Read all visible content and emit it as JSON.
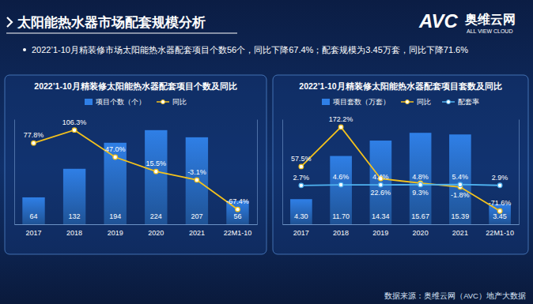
{
  "header": {
    "title": "太阳能热水器市场配套规模分析",
    "bullet": "2022’1-10月精装修市场太阳能热水器配套项目个数56个，同比下降67.4%；配套规模为3.45万套，同比下降71.6%",
    "logo": {
      "mark": "AVC",
      "name": "奥维云网",
      "tagline": "ALL VIEW CLOUD"
    }
  },
  "footer": {
    "source": "数据来源：奥维云网（AVC）地产大数据"
  },
  "chart_data": [
    {
      "type": "bar",
      "title": "2022’1-10月精装修太阳能热水器配套项目个数及同比",
      "categories": [
        "2017",
        "2018",
        "2019",
        "2020",
        "2021",
        "22M1-10"
      ],
      "series": [
        {
          "name": "项目个数（个）",
          "type": "bar",
          "color": "#2f7fe6",
          "values": [
            64,
            132,
            194,
            224,
            207,
            56
          ]
        },
        {
          "name": "同比",
          "type": "line",
          "axis": "y2",
          "color": "#f4c21c",
          "marker": "circle",
          "values": [
            77.8,
            106.3,
            47.0,
            15.5,
            -3.1,
            -67.4
          ],
          "value_labels": [
            "77.8%",
            "106.3%",
            "47.0%",
            "15.5%",
            "-3.1%",
            "-67.4%"
          ]
        }
      ],
      "ylim": [
        0,
        250
      ],
      "y2lim": [
        -100,
        130
      ],
      "data_labels": true,
      "tick_labels": "x",
      "legend": "top"
    },
    {
      "type": "bar",
      "title": "2022’1-10月精装修太阳能热水器配套项目套数及同比",
      "categories": [
        "2017",
        "2018",
        "2019",
        "2020",
        "2021",
        "22M1-10"
      ],
      "series": [
        {
          "name": "项目套数（万套）",
          "type": "bar",
          "color": "#2f7fe6",
          "values": [
            4.3,
            11.7,
            14.34,
            15.67,
            15.39,
            3.45
          ],
          "value_labels": [
            "4.30",
            "11.70",
            "14.34",
            "15.67",
            "15.39",
            "3.45"
          ]
        },
        {
          "name": "同比",
          "type": "line",
          "axis": "y2",
          "color": "#f4c21c",
          "marker": "circle",
          "values": [
            57.5,
            172.2,
            22.6,
            9.3,
            -1.8,
            -71.6
          ],
          "value_labels": [
            "57.5%",
            "172.2%",
            "22.6%",
            "9.3%",
            "-1.8%",
            "-71.6%"
          ]
        },
        {
          "name": "配套率",
          "type": "line",
          "axis": "y2",
          "color": "#4fb3f0",
          "marker": "circle",
          "values": [
            2.7,
            4.6,
            4.4,
            4.8,
            5.4,
            2.9
          ],
          "value_labels": [
            "2.7%",
            "4.6%",
            "4.4%",
            "4.8%",
            "5.4%",
            "2.9%"
          ]
        }
      ],
      "ylim": [
        0,
        18
      ],
      "y2lim": [
        -110,
        195
      ],
      "data_labels": true,
      "tick_labels": "x",
      "legend": "top"
    }
  ]
}
